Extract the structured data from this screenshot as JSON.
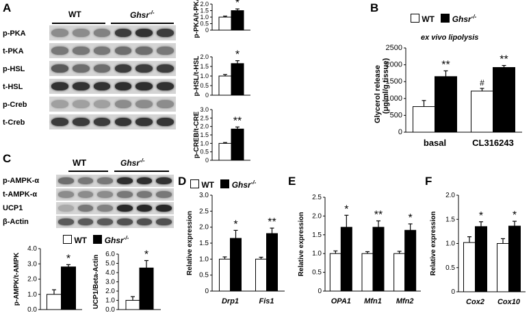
{
  "panel_letters": {
    "A": "A",
    "B": "B",
    "C": "C",
    "D": "D",
    "E": "E",
    "F": "F"
  },
  "legend": {
    "wt": "WT",
    "ko": "Ghsr"
  },
  "ko_superscript": "-/-",
  "ex_vivo_title": "ex vivo lipolysis",
  "blot_a": {
    "groups": [
      "WT",
      "Ghsr"
    ],
    "rows": [
      "p-PKA",
      "t-PKA",
      "p-HSL",
      "t-HSL",
      "p-Creb",
      "t-Creb"
    ]
  },
  "blot_c": {
    "groups": [
      "WT",
      "Ghsr"
    ],
    "rows": [
      "p-AMPK-α",
      "t-AMPK-α",
      "UCP1",
      "β-Actin"
    ]
  },
  "colors": {
    "wt": "#ffffff",
    "ko": "#000000"
  },
  "chart_data": [
    {
      "id": "a1",
      "type": "bar",
      "ylabel": "p-PKA/t-PKA",
      "ticks": [
        "0",
        "0.5",
        "1.0",
        "1.5",
        "2.0"
      ],
      "ylim": [
        0,
        2
      ],
      "series": [
        {
          "name": "WT",
          "values": [
            1.0
          ]
        },
        {
          "name": "Ghsr",
          "values": [
            1.5
          ]
        }
      ],
      "errors": [
        [
          0.08
        ],
        [
          0.13
        ]
      ],
      "sig": [
        "*"
      ]
    },
    {
      "id": "a2",
      "type": "bar",
      "ylabel": "p-HSL/t-HSL",
      "ticks": [
        "0",
        "0.5",
        "1.0",
        "1.5",
        "2.0"
      ],
      "ylim": [
        0,
        2
      ],
      "series": [
        {
          "name": "WT",
          "values": [
            1.0
          ]
        },
        {
          "name": "Ghsr",
          "values": [
            1.65
          ]
        }
      ],
      "errors": [
        [
          0.08
        ],
        [
          0.15
        ]
      ],
      "sig": [
        "*"
      ]
    },
    {
      "id": "a3",
      "type": "bar",
      "ylabel": "p-CREB/t-CRE",
      "ticks": [
        "0",
        "0.5",
        "1.0",
        "1.5",
        "2.0",
        "2.5",
        "3.0"
      ],
      "ylim": [
        0,
        3
      ],
      "series": [
        {
          "name": "WT",
          "values": [
            1.0
          ]
        },
        {
          "name": "Ghsr",
          "values": [
            1.85
          ]
        }
      ],
      "errors": [
        [
          0.05
        ],
        [
          0.12
        ]
      ],
      "sig": [
        "**"
      ]
    },
    {
      "id": "b",
      "type": "bar",
      "ylabel": "Glycerol release (μg/ml/g tissue)",
      "categories": [
        "basal",
        "CL316243"
      ],
      "ticks": [
        "0",
        "500",
        "1000",
        "1500",
        "2000",
        "2500"
      ],
      "ylim": [
        0,
        2500
      ],
      "series": [
        {
          "name": "WT",
          "values": [
            760,
            1220
          ]
        },
        {
          "name": "Ghsr",
          "values": [
            1650,
            1920
          ]
        }
      ],
      "errors": [
        [
          180,
          80
        ],
        [
          170,
          60
        ]
      ],
      "sig": [
        "**",
        "**"
      ],
      "wt_marks": [
        "",
        "#"
      ]
    },
    {
      "id": "c1",
      "type": "bar",
      "ylabel": "p-AMPK/t-AMPK",
      "ticks": [
        "0.0",
        "1.0",
        "2.0",
        "3.0",
        "4.0"
      ],
      "ylim": [
        0,
        4
      ],
      "series": [
        {
          "name": "WT",
          "values": [
            1.0
          ]
        },
        {
          "name": "Ghsr",
          "values": [
            2.8
          ]
        }
      ],
      "errors": [
        [
          0.3
        ],
        [
          0.15
        ]
      ],
      "sig": [
        "*"
      ]
    },
    {
      "id": "c2",
      "type": "bar",
      "ylabel": "UCP1/Beta-Actin",
      "ticks": [
        "0.0",
        "1.0",
        "2.0",
        "3.0",
        "4.0",
        "5.0",
        "6.0"
      ],
      "ylim": [
        0,
        6
      ],
      "series": [
        {
          "name": "WT",
          "values": [
            1.0
          ]
        },
        {
          "name": "Ghsr",
          "values": [
            4.5
          ]
        }
      ],
      "errors": [
        [
          0.4
        ],
        [
          0.8
        ]
      ],
      "sig": [
        "*"
      ]
    },
    {
      "id": "d",
      "type": "bar",
      "ylabel": "Relative expression",
      "categories": [
        "Drp1",
        "Fis1"
      ],
      "ticks": [
        "0",
        "0.5",
        "1.0",
        "1.5",
        "2.0",
        "2.5",
        "3.0"
      ],
      "ylim": [
        0,
        3
      ],
      "series": [
        {
          "name": "WT",
          "values": [
            1.0,
            1.0
          ]
        },
        {
          "name": "Ghsr",
          "values": [
            1.65,
            1.8
          ]
        }
      ],
      "errors": [
        [
          0.07,
          0.06
        ],
        [
          0.25,
          0.17
        ]
      ],
      "sig": [
        "*",
        "**"
      ]
    },
    {
      "id": "e",
      "type": "bar",
      "ylabel": "Relative expression",
      "categories": [
        "OPA1",
        "Mfn1",
        "Mfn2"
      ],
      "ticks": [
        "0",
        "0.5",
        "1.0",
        "1.5",
        "2.0",
        "2.5"
      ],
      "ylim": [
        0,
        2.5
      ],
      "series": [
        {
          "name": "WT",
          "values": [
            1.0,
            1.0,
            1.0
          ]
        },
        {
          "name": "Ghsr",
          "values": [
            1.7,
            1.7,
            1.62
          ]
        }
      ],
      "errors": [
        [
          0.07,
          0.05,
          0.06
        ],
        [
          0.32,
          0.17,
          0.17
        ]
      ],
      "sig": [
        "*",
        "**",
        "*"
      ]
    },
    {
      "id": "f",
      "type": "bar",
      "ylabel": "Relative expression",
      "categories": [
        "Cox2",
        "Cox10"
      ],
      "ticks": [
        "0",
        "0.5",
        "1.0",
        "1.5",
        "2.0"
      ],
      "ylim": [
        0,
        2
      ],
      "series": [
        {
          "name": "WT",
          "values": [
            1.02,
            1.0
          ]
        },
        {
          "name": "Ghsr",
          "values": [
            1.35,
            1.36
          ]
        }
      ],
      "errors": [
        [
          0.12,
          0.1
        ],
        [
          0.1,
          0.1
        ]
      ],
      "sig": [
        "*",
        "*"
      ]
    }
  ]
}
